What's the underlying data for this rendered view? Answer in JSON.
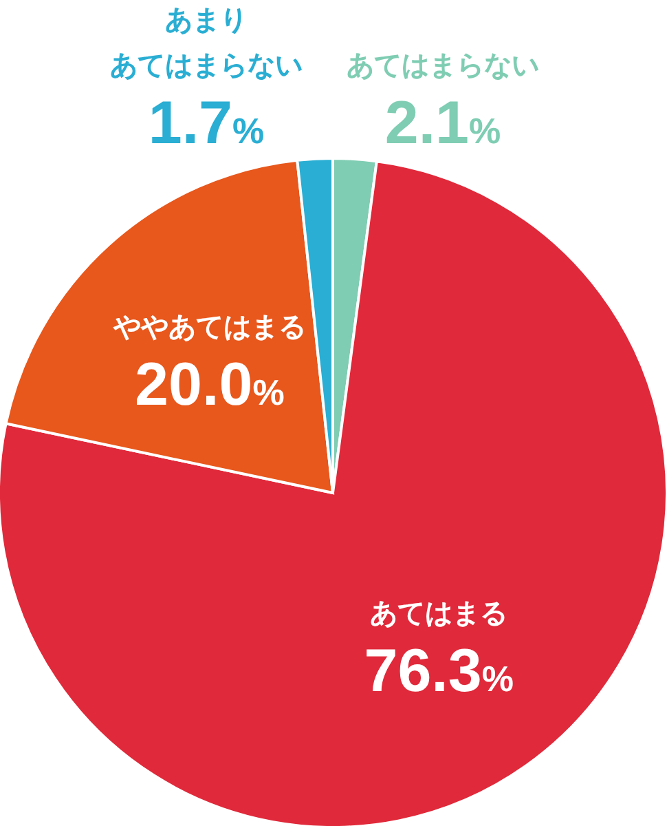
{
  "chart_data": {
    "type": "pie",
    "categories": [
      "あてはまらない",
      "あてはまる",
      "ややあてはまる",
      "あまりあてはまらない"
    ],
    "values": [
      2.1,
      76.3,
      20.0,
      1.7
    ],
    "colors": [
      "#7fcdb3",
      "#e0293a",
      "#e8571c",
      "#2aaed3"
    ],
    "value_labels": [
      "2.1%",
      "76.3%",
      "20.0%",
      "1.7%"
    ]
  }
}
